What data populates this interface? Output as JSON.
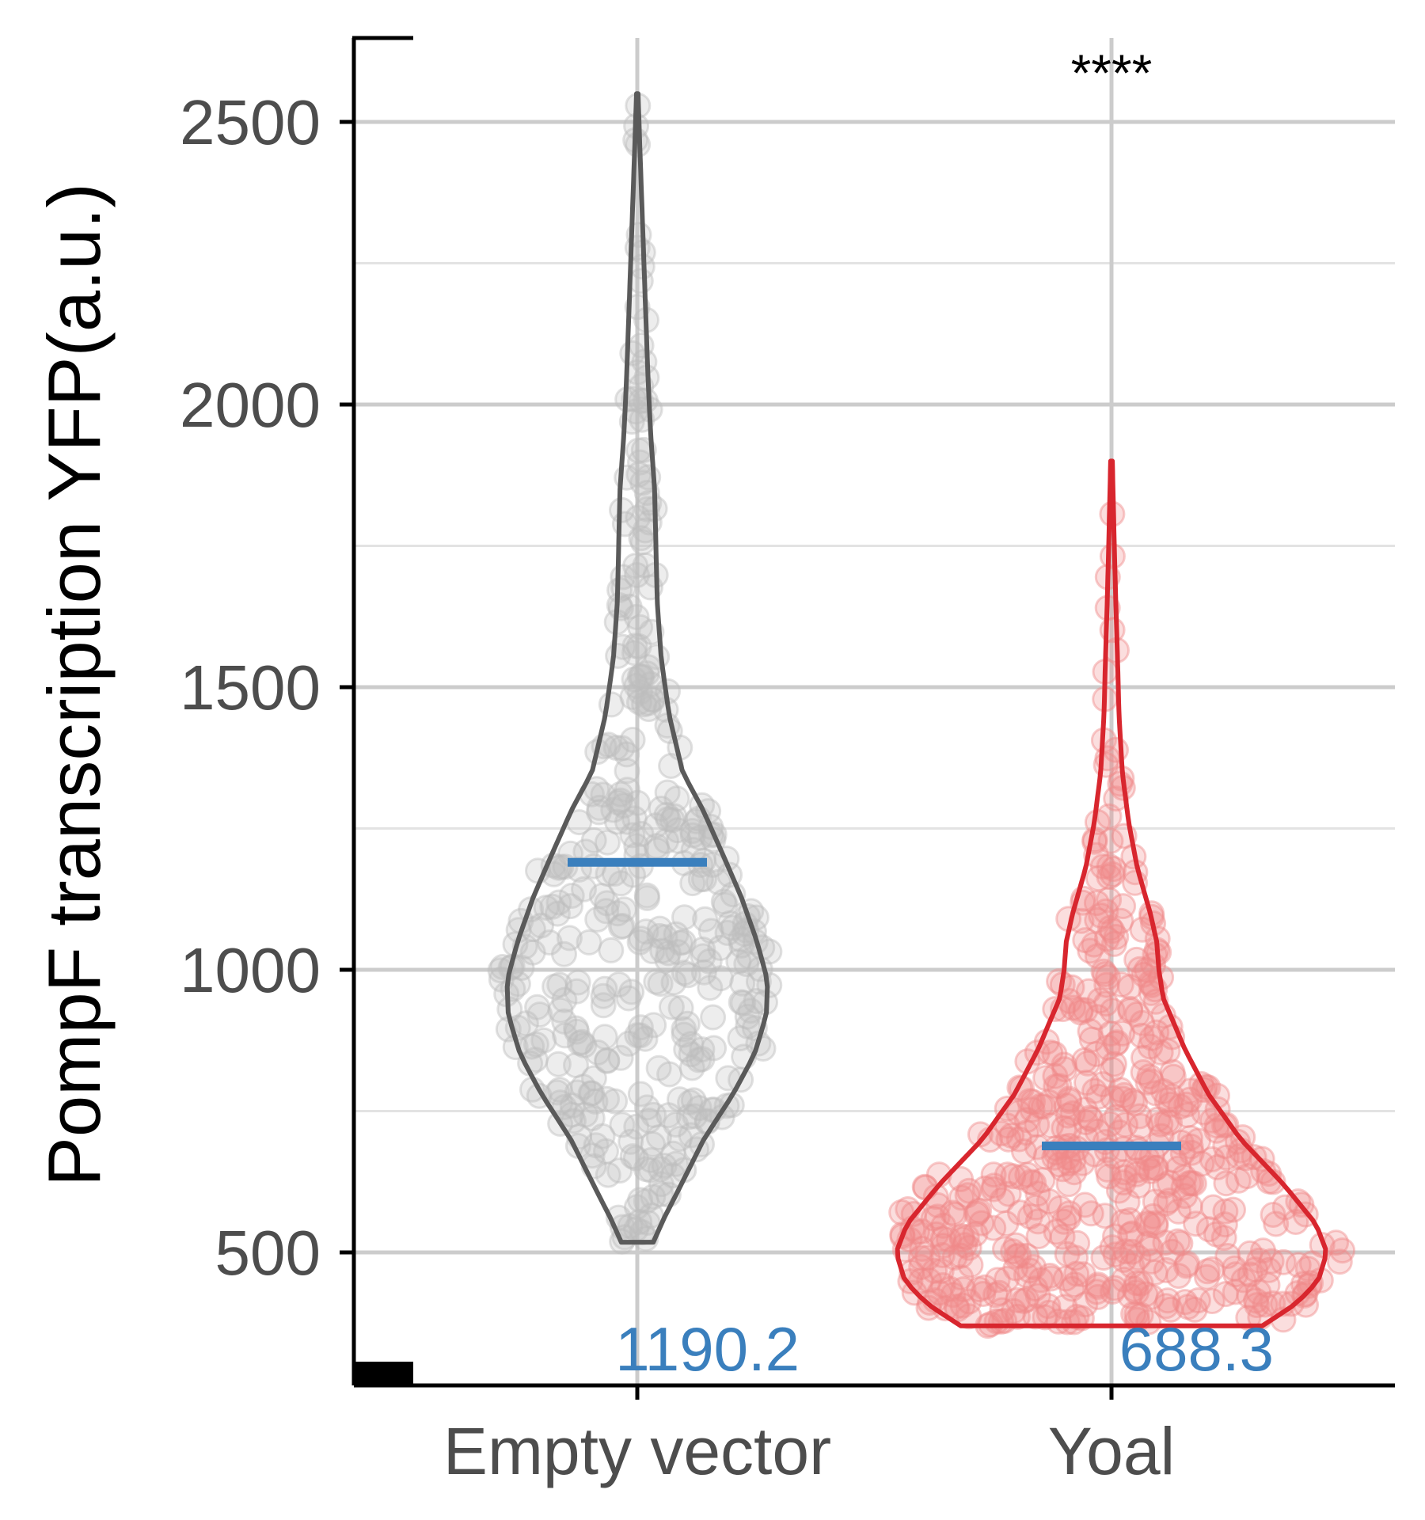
{
  "chart_data": {
    "type": "violin",
    "ylabel": "PompF transcription YFP(a.u.)",
    "xlabel": "",
    "ylim": [
      270,
      2650
    ],
    "y_ticks": [
      500,
      1000,
      1500,
      2000,
      2500
    ],
    "y_tick_labels": [
      "500",
      "1000",
      "1500",
      "2000",
      "2500"
    ],
    "y_minor_ticks": [
      750,
      1250,
      1750,
      2250
    ],
    "grid": true,
    "categories": [
      "Empty vector",
      "Yoal"
    ],
    "series": [
      {
        "category": "Empty vector",
        "color": "#5a5a5a",
        "point_color": "#bdbdbd",
        "min": 518,
        "max": 2550,
        "mean": 1190.2,
        "mean_label": "1190.2",
        "n_points": 420,
        "density": [
          [
            518,
            0.12
          ],
          [
            560,
            0.2
          ],
          [
            620,
            0.33
          ],
          [
            700,
            0.5
          ],
          [
            780,
            0.72
          ],
          [
            850,
            0.88
          ],
          [
            920,
            0.97
          ],
          [
            980,
            0.98
          ],
          [
            1050,
            0.9
          ],
          [
            1130,
            0.78
          ],
          [
            1200,
            0.65
          ],
          [
            1280,
            0.5
          ],
          [
            1350,
            0.34
          ],
          [
            1450,
            0.24
          ],
          [
            1550,
            0.18
          ],
          [
            1650,
            0.15
          ],
          [
            1750,
            0.14
          ],
          [
            1850,
            0.13
          ],
          [
            1950,
            0.1
          ],
          [
            2050,
            0.08
          ],
          [
            2150,
            0.065
          ],
          [
            2250,
            0.05
          ],
          [
            2350,
            0.035
          ],
          [
            2450,
            0.02
          ],
          [
            2550,
            0.006
          ]
        ]
      },
      {
        "category": "Yoal",
        "color": "#d8262e",
        "point_color": "#ef8a8a",
        "min": 370,
        "max": 1900,
        "mean": 688.3,
        "mean_label": "688.3",
        "n_points": 560,
        "density": [
          [
            370,
            0.7
          ],
          [
            410,
            0.86
          ],
          [
            450,
            0.96
          ],
          [
            500,
            1.0
          ],
          [
            550,
            0.95
          ],
          [
            620,
            0.8
          ],
          [
            700,
            0.6
          ],
          [
            780,
            0.45
          ],
          [
            860,
            0.34
          ],
          [
            950,
            0.24
          ],
          [
            1000,
            0.22
          ],
          [
            1050,
            0.21
          ],
          [
            1100,
            0.18
          ],
          [
            1180,
            0.12
          ],
          [
            1260,
            0.08
          ],
          [
            1350,
            0.05
          ],
          [
            1450,
            0.035
          ],
          [
            1550,
            0.028
          ],
          [
            1650,
            0.02
          ],
          [
            1750,
            0.013
          ],
          [
            1850,
            0.007
          ],
          [
            1900,
            0.004
          ]
        ]
      }
    ],
    "significance": "****"
  }
}
